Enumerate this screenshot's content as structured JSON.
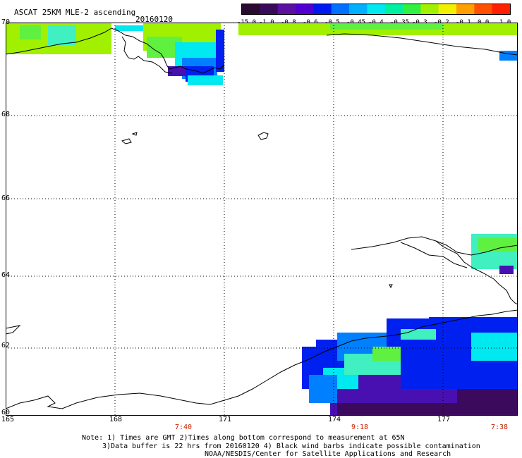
{
  "header": {
    "title": "ASCAT 25KM MLE-2 ascending",
    "date": "20160120"
  },
  "colorbar": {
    "tick_labels": [
      "-15.0",
      "-1.0",
      "-0.8",
      "-0.6",
      "-0.5",
      "-0.45",
      "-0.4",
      "-0.35",
      "-0.3",
      "-0.2",
      "-0.1",
      "0.0",
      "1.0"
    ],
    "colors": [
      "#2a0a30",
      "#3a0a5a",
      "#5a10a0",
      "#5000d0",
      "#0018f0",
      "#0070ff",
      "#00b0ff",
      "#00e8f0",
      "#00f0a0",
      "#30f040",
      "#a0f000",
      "#f0f000",
      "#ffa000",
      "#ff5000",
      "#ff2000"
    ]
  },
  "map": {
    "lat_labels": [
      "70",
      "68",
      "66",
      "64",
      "62",
      "60"
    ],
    "lon_labels": [
      "165",
      "168",
      "171",
      "174",
      "177"
    ],
    "time_labels": [
      "7:40",
      "9:18",
      "7:38"
    ],
    "land_color": "#ffffff",
    "grid_color": "#000000"
  },
  "notes": {
    "line1": "Note: 1) Times are GMT 2)Times along bottom correspond to measurement at 65N",
    "line2": "3)Data buffer is 22 hrs from 20160120 4) Black wind barbs indicate possible contamination",
    "line3": "NOAA/NESDIS/Center for Satellite Applications and Research"
  },
  "swath_colors": {
    "deep_purple": "#3c0a5c",
    "purple": "#4810b0",
    "blue": "#0020f0",
    "light_blue": "#0080ff",
    "cyan": "#00e8f0",
    "aqua": "#40f0c0",
    "green": "#60f040",
    "yellow_green": "#a0f000"
  }
}
